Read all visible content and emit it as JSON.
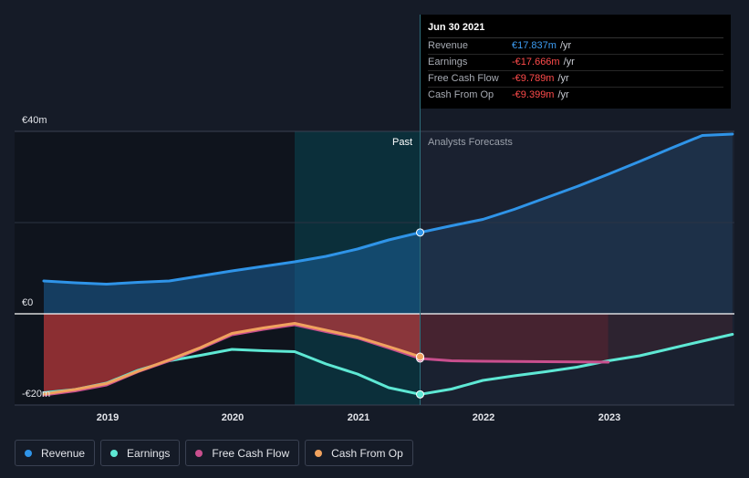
{
  "tooltip": {
    "date": "Jun 30 2021",
    "rows": [
      {
        "label": "Revenue",
        "value": "€17.837m",
        "unit": "/yr",
        "color": "#3d9df3"
      },
      {
        "label": "Earnings",
        "value": "-€17.666m",
        "unit": "/yr",
        "color": "#ff4b4b"
      },
      {
        "label": "Free Cash Flow",
        "value": "-€9.789m",
        "unit": "/yr",
        "color": "#ff4b4b"
      },
      {
        "label": "Cash From Op",
        "value": "-€9.399m",
        "unit": "/yr",
        "color": "#ff4b4b"
      }
    ]
  },
  "legend": [
    {
      "label": "Revenue",
      "color": "#2f94e8"
    },
    {
      "label": "Earnings",
      "color": "#5ee8d4"
    },
    {
      "label": "Free Cash Flow",
      "color": "#c94f8e"
    },
    {
      "label": "Cash From Op",
      "color": "#f0a25e"
    }
  ],
  "chart_data": {
    "type": "line",
    "title": "",
    "past_label": "Past",
    "forecast_label": "Analysts Forecasts",
    "y_tick_labels": [
      "€40m",
      "€0",
      "-€20m"
    ],
    "ylim": [
      -20,
      40
    ],
    "x_ticks": [
      2019,
      2020,
      2021,
      2022,
      2023
    ],
    "x_range": [
      2018.5,
      2023.99
    ],
    "past_highlight_range": [
      2020.5,
      2021.5
    ],
    "forecast_start": 2021.5,
    "series": [
      {
        "name": "Revenue",
        "color": "#2f94e8",
        "points": [
          [
            2018.5,
            7.2
          ],
          [
            2018.75,
            6.8
          ],
          [
            2019.0,
            6.5
          ],
          [
            2019.25,
            6.9
          ],
          [
            2019.5,
            7.2
          ],
          [
            2019.75,
            8.3
          ],
          [
            2020.0,
            9.4
          ],
          [
            2020.25,
            10.4
          ],
          [
            2020.5,
            11.4
          ],
          [
            2020.75,
            12.6
          ],
          [
            2021.0,
            14.2
          ],
          [
            2021.25,
            16.2
          ],
          [
            2021.5,
            17.837
          ],
          [
            2021.75,
            19.3
          ],
          [
            2022.0,
            20.7
          ],
          [
            2022.25,
            22.9
          ],
          [
            2022.5,
            25.4
          ],
          [
            2022.75,
            27.9
          ],
          [
            2023.0,
            30.6
          ],
          [
            2023.25,
            33.4
          ],
          [
            2023.5,
            36.3
          ],
          [
            2023.75,
            39.1
          ],
          [
            2023.99,
            39.4
          ]
        ]
      },
      {
        "name": "Earnings",
        "color": "#5ee8d4",
        "points": [
          [
            2018.5,
            -17.3
          ],
          [
            2018.75,
            -16.6
          ],
          [
            2019.0,
            -15.2
          ],
          [
            2019.25,
            -12.4
          ],
          [
            2019.5,
            -10.3
          ],
          [
            2019.75,
            -9.1
          ],
          [
            2020.0,
            -7.8
          ],
          [
            2020.25,
            -8.1
          ],
          [
            2020.5,
            -8.3
          ],
          [
            2020.75,
            -11.0
          ],
          [
            2021.0,
            -13.2
          ],
          [
            2021.25,
            -16.2
          ],
          [
            2021.5,
            -17.666
          ],
          [
            2021.75,
            -16.5
          ],
          [
            2022.0,
            -14.6
          ],
          [
            2022.25,
            -13.6
          ],
          [
            2022.5,
            -12.7
          ],
          [
            2022.75,
            -11.7
          ],
          [
            2023.0,
            -10.3
          ],
          [
            2023.25,
            -9.2
          ],
          [
            2023.5,
            -7.6
          ],
          [
            2023.75,
            -6.0
          ],
          [
            2023.99,
            -4.5
          ]
        ]
      },
      {
        "name": "Free Cash Flow",
        "color": "#c94f8e",
        "points": [
          [
            2018.5,
            -17.8
          ],
          [
            2018.75,
            -16.9
          ],
          [
            2019.0,
            -15.6
          ],
          [
            2019.25,
            -12.7
          ],
          [
            2019.5,
            -10.3
          ],
          [
            2019.75,
            -7.6
          ],
          [
            2020.0,
            -4.6
          ],
          [
            2020.25,
            -3.4
          ],
          [
            2020.5,
            -2.4
          ],
          [
            2020.75,
            -3.9
          ],
          [
            2021.0,
            -5.3
          ],
          [
            2021.25,
            -7.5
          ],
          [
            2021.5,
            -9.789
          ],
          [
            2021.75,
            -10.3
          ],
          [
            2022.0,
            -10.4
          ],
          [
            2022.5,
            -10.5
          ],
          [
            2023.0,
            -10.6
          ]
        ]
      },
      {
        "name": "Cash From Op",
        "color": "#f0a25e",
        "points": [
          [
            2018.5,
            -17.6
          ],
          [
            2018.75,
            -16.6
          ],
          [
            2019.0,
            -15.3
          ],
          [
            2019.25,
            -12.6
          ],
          [
            2019.5,
            -10.1
          ],
          [
            2019.75,
            -7.4
          ],
          [
            2020.0,
            -4.3
          ],
          [
            2020.25,
            -3.1
          ],
          [
            2020.5,
            -2.1
          ],
          [
            2020.75,
            -3.6
          ],
          [
            2021.0,
            -5.1
          ],
          [
            2021.25,
            -7.2
          ],
          [
            2021.5,
            -9.399
          ]
        ]
      }
    ]
  }
}
